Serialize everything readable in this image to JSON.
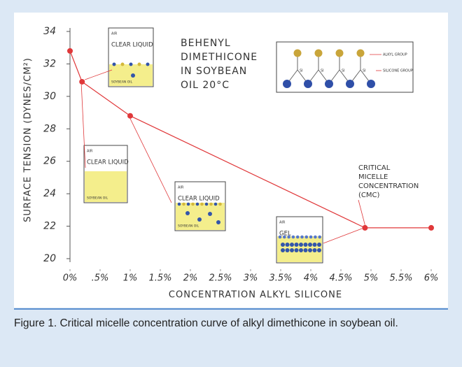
{
  "chart_data": {
    "type": "line",
    "x_label": "CONCENTRATION ALKYL SILICONE",
    "y_label": "SURFACE TENSION (DYNES/CM²)",
    "x": [
      0,
      0.2,
      1,
      4.9,
      6
    ],
    "series": [
      {
        "color": "#e0383a",
        "values": [
          32.8,
          30.9,
          28.8,
          21.9,
          21.9
        ]
      }
    ],
    "xlim": [
      0,
      6
    ],
    "xticks": [
      {
        "value": 0,
        "label": "0%"
      },
      {
        "value": 0.5,
        "label": ".5%"
      },
      {
        "value": 1,
        "label": "1%"
      },
      {
        "value": 1.5,
        "label": "1.5%"
      },
      {
        "value": 2,
        "label": "2%"
      },
      {
        "value": 2.5,
        "label": "2.5%"
      },
      {
        "value": 3,
        "label": "3%"
      },
      {
        "value": 3.5,
        "label": "3.5%"
      },
      {
        "value": 4,
        "label": "4%"
      },
      {
        "value": 4.5,
        "label": "4.5%"
      },
      {
        "value": 5,
        "label": "5%"
      },
      {
        "value": 5.5,
        "label": "5.5%"
      },
      {
        "value": 6,
        "label": "6%"
      }
    ],
    "ylim": [
      20,
      34
    ],
    "yticks": [
      20,
      22,
      24,
      26,
      28,
      30,
      32,
      34
    ],
    "annotations": {
      "title_lines": [
        "BEHENYL",
        "DIMETHICONE",
        "IN SOYBEAN",
        "OIL 20°C"
      ],
      "cmc_lines": [
        "CRITICAL",
        "MICELLE",
        "CONCENTRATION",
        "(CMC)"
      ],
      "insets": [
        {
          "top": "AIR",
          "state": "CLEAR LIQUID",
          "bottom": "SOYBEAN OIL"
        },
        {
          "top": "AIR",
          "state": "CLEAR LIQUID",
          "bottom": "SOYBEAN OIL"
        },
        {
          "top": "AIR",
          "state": "CLEAR LIQUID",
          "bottom": "SOYBEAN OIL"
        },
        {
          "top": "AIR",
          "state": "GEL"
        }
      ],
      "diagram": {
        "alkyl": "ALKYL GROUP",
        "silicone": "SILICONE GROUP",
        "si": "SI"
      }
    }
  },
  "caption": "Figure 1. Critical micelle concentration curve of alkyl dimethicone in soybean oil."
}
